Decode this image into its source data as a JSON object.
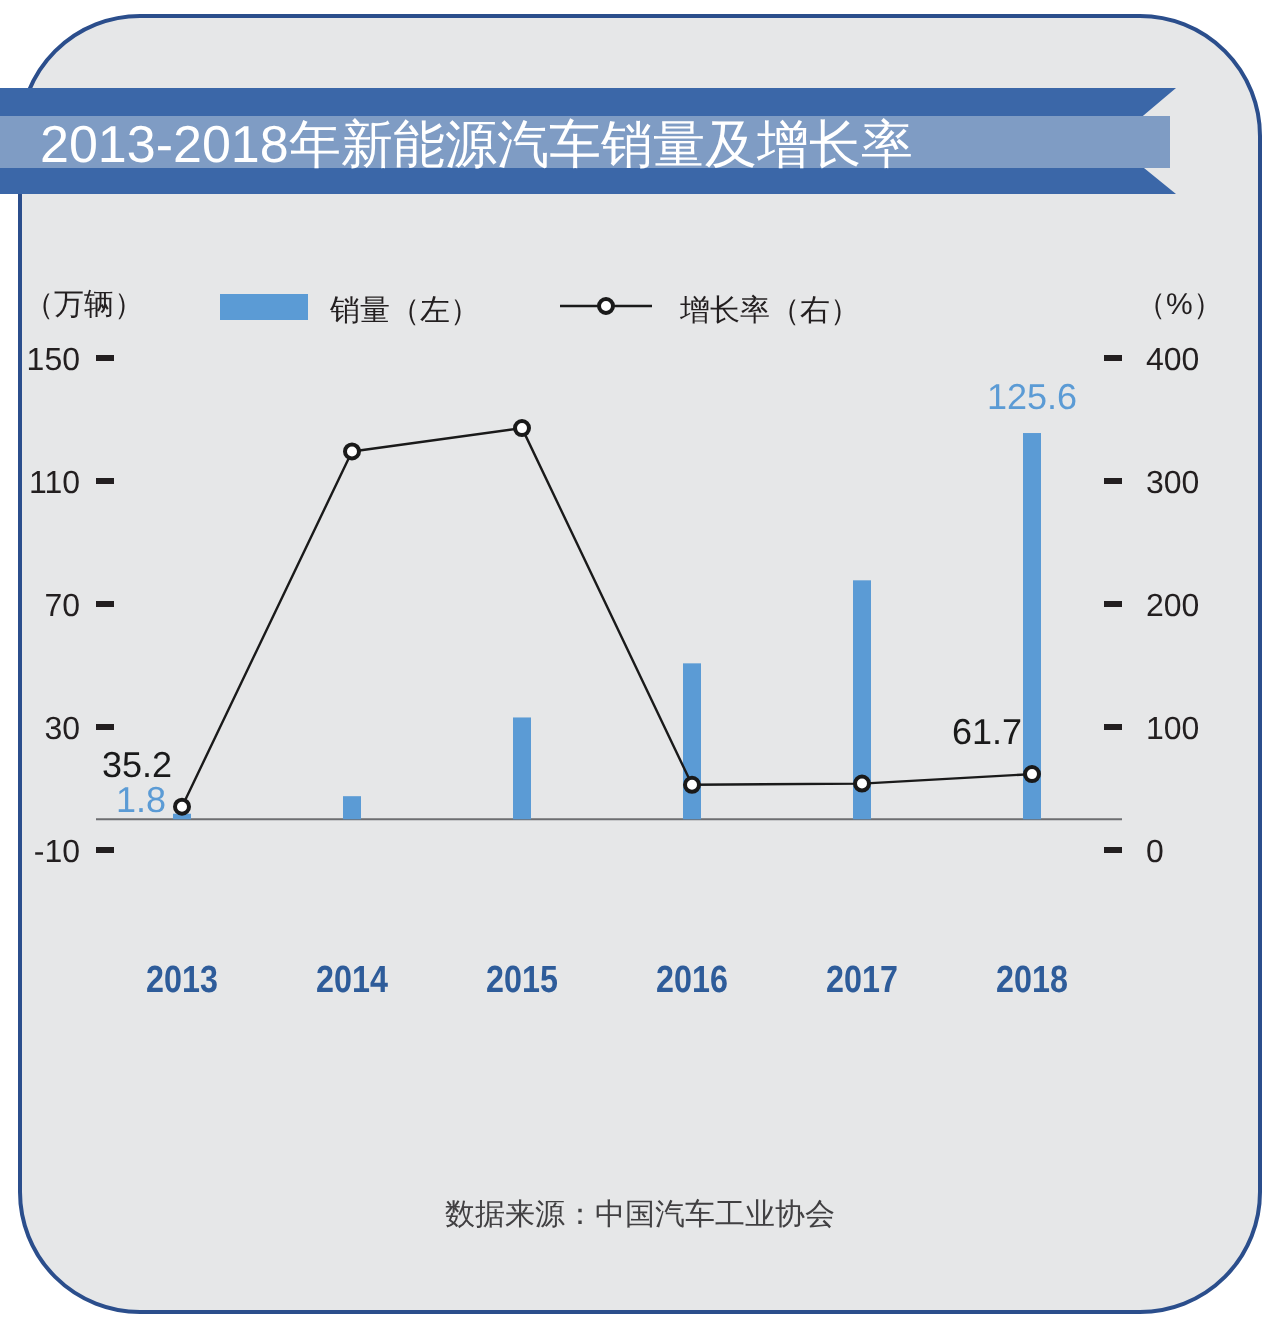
{
  "chart_data": {
    "type": "bar",
    "title": "2013-2018年新能源汽车销量及增长率",
    "ylabel": "（万辆）",
    "y2label": "（%）",
    "categories": [
      "2013",
      "2014",
      "2015",
      "2016",
      "2017",
      "2018"
    ],
    "series": [
      {
        "name": "销量（左）",
        "color": "#5b9bd5",
        "values": [
          1.8,
          7.5,
          33.1,
          50.7,
          77.7,
          125.6
        ],
        "value_labels": [
          "1.8",
          null,
          null,
          null,
          null,
          "125.6"
        ]
      },
      {
        "name": "增长率（右）",
        "type": "line",
        "axis": "y2",
        "color": "#1a1a1a",
        "marker": "circle",
        "values": [
          35.2,
          324,
          343,
          53,
          54,
          61.7
        ],
        "value_labels": [
          "35.2",
          null,
          null,
          null,
          null,
          "61.7"
        ]
      }
    ],
    "ylim": [
      -10,
      150
    ],
    "yticks": [
      -10,
      30,
      70,
      110,
      150
    ],
    "y2lim": [
      0,
      400
    ],
    "y2ticks": [
      0,
      100,
      200,
      300,
      400
    ],
    "legend": "top",
    "annotations": [
      "数据来源：中国汽车工业协会"
    ]
  }
}
